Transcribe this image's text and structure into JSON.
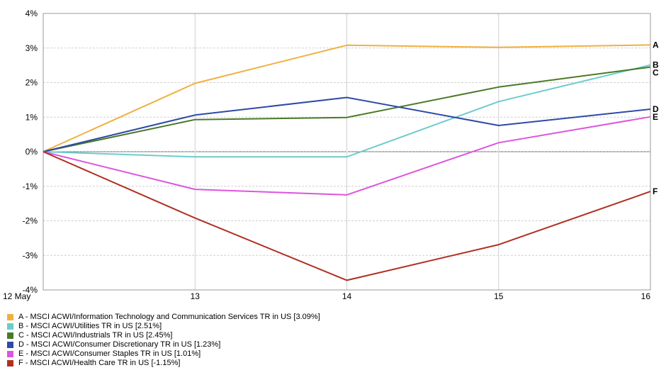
{
  "chart_data": {
    "type": "line",
    "title": "",
    "xlabel": "",
    "ylabel": "",
    "categories": [
      "12 May",
      "13",
      "14",
      "15",
      "16"
    ],
    "ylim": [
      -4,
      4
    ],
    "yticks": [
      4,
      3,
      2,
      1,
      0,
      -1,
      -2,
      -3,
      -4
    ],
    "ytick_labels": [
      "4%",
      "3%",
      "2%",
      "1%",
      "0%",
      "-1%",
      "-2%",
      "-3%",
      "-4%"
    ],
    "grid": true,
    "zero_line": true,
    "legend_position": "bottom-left",
    "series": [
      {
        "letter": "A",
        "name": "A - MSCI ACWI/Information Technology and Communication Services TR in US [3.09%]",
        "color": "#f0b040",
        "values": [
          0,
          1.98,
          3.08,
          3.02,
          3.09
        ]
      },
      {
        "letter": "B",
        "name": "B - MSCI ACWI/Utilities TR in US [2.51%]",
        "color": "#6ccccc",
        "values": [
          0,
          -0.15,
          -0.15,
          1.45,
          2.51
        ]
      },
      {
        "letter": "C",
        "name": "C - MSCI ACWI/Industrials TR in US [2.45%]",
        "color": "#4a7a28",
        "values": [
          0,
          0.93,
          0.99,
          1.87,
          2.45
        ]
      },
      {
        "letter": "D",
        "name": "D - MSCI ACWI/Consumer Discretionary TR in US [1.23%]",
        "color": "#2e4aa6",
        "values": [
          0,
          1.06,
          1.57,
          0.76,
          1.23
        ]
      },
      {
        "letter": "E",
        "name": "E - MSCI ACWI/Consumer Staples TR in US [1.01%]",
        "color": "#dd55dd",
        "values": [
          0,
          -1.09,
          -1.25,
          0.26,
          1.01
        ]
      },
      {
        "letter": "F",
        "name": "F - MSCI ACWI/Health Care TR in US [-1.15%]",
        "color": "#b03020",
        "values": [
          0,
          -1.92,
          -3.72,
          -2.69,
          -1.15
        ]
      }
    ]
  }
}
